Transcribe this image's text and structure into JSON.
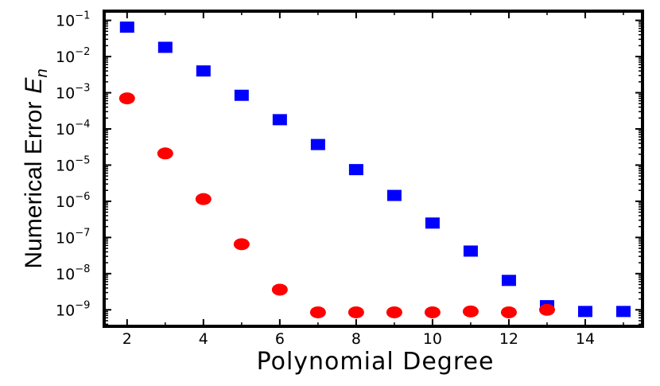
{
  "chart_data": {
    "type": "scatter",
    "title": "",
    "xlabel": "Polynomial Degree",
    "ylabel": "Numerical Error",
    "ylabel_symbol": "E",
    "ylabel_subscript": "n",
    "xlim": [
      1.4,
      15.5
    ],
    "ylim": [
      3.5e-10,
      0.18
    ],
    "yscale": "log",
    "grid": false,
    "xticks": [
      2,
      4,
      6,
      8,
      10,
      12,
      14
    ],
    "yticks": [
      {
        "value": 0.1,
        "exp": "−1"
      },
      {
        "value": 0.01,
        "exp": "−2"
      },
      {
        "value": 0.001,
        "exp": "−3"
      },
      {
        "value": 0.0001,
        "exp": "−4"
      },
      {
        "value": 1e-05,
        "exp": "−5"
      },
      {
        "value": 1e-06,
        "exp": "−6"
      },
      {
        "value": 1e-07,
        "exp": "−7"
      },
      {
        "value": 1e-08,
        "exp": "−8"
      },
      {
        "value": 1e-09,
        "exp": "−9"
      }
    ],
    "series": [
      {
        "marker": "square",
        "color": "#0000ff",
        "x": [
          2,
          3,
          4,
          5,
          6,
          7,
          8,
          9,
          10,
          11,
          12,
          13,
          14,
          15
        ],
        "y": [
          0.065,
          0.018,
          0.004,
          0.00085,
          0.00018,
          3.7e-05,
          7.5e-06,
          1.45e-06,
          2.5e-07,
          4.2e-08,
          6.5e-09,
          1.3e-09,
          9e-10,
          9e-10
        ]
      },
      {
        "marker": "circle",
        "color": "#ff0000",
        "x": [
          2,
          3,
          4,
          5,
          6,
          7,
          8,
          9,
          10,
          11,
          12,
          13
        ],
        "y": [
          0.0007,
          2.1e-05,
          1.15e-06,
          6.5e-08,
          3.6e-09,
          8.5e-10,
          8.5e-10,
          8.5e-10,
          8.5e-10,
          9e-10,
          8.5e-10,
          1e-09
        ]
      }
    ]
  }
}
